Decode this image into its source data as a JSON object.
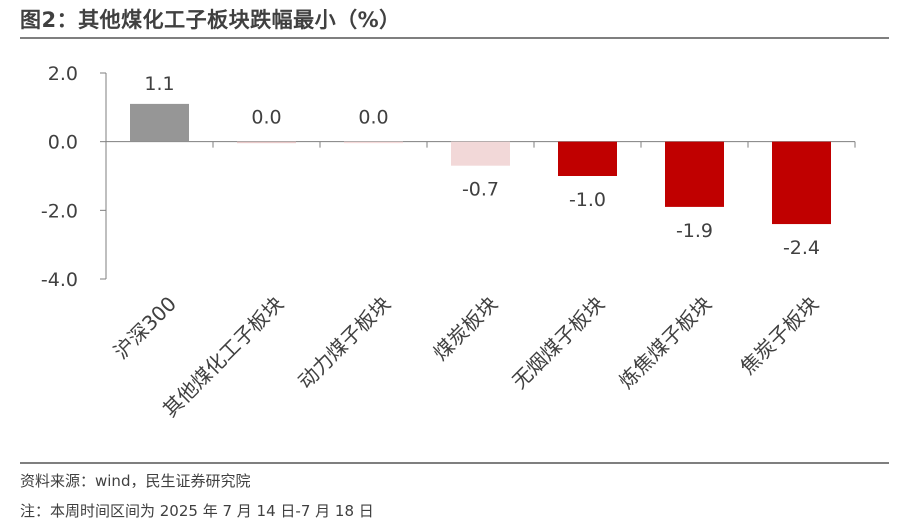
{
  "title": "图2：其他煤化工子板块跌幅最小（%）",
  "footnotes": {
    "source": "资料来源：wind，民生证券研究院",
    "note": "注：本周时间区间为 2025 年 7 月 14 日-7 月 18 日"
  },
  "chart_data": {
    "type": "bar",
    "categories": [
      "沪深300",
      "其他煤化工子板块",
      "动力煤子板块",
      "煤炭板块",
      "无烟煤子板块",
      "炼焦煤子板块",
      "焦炭子板块"
    ],
    "values": [
      1.1,
      0.0,
      0.0,
      -0.7,
      -1.0,
      -1.9,
      -2.4
    ],
    "data_labels": [
      "1.1",
      "0.0",
      "0.0",
      "-0.7",
      "-1.0",
      "-1.9",
      "-2.4"
    ],
    "bar_colors": [
      "#969696",
      "#e8c8c8",
      "#f5dada",
      "#f2d8d8",
      "#c00000",
      "#c00000",
      "#c00000"
    ],
    "yticks": [
      "2.0",
      "0.0",
      "-2.0",
      "-4.0"
    ],
    "ytick_values": [
      2,
      0,
      -2,
      -4
    ],
    "ylim": [
      -4,
      2
    ],
    "grid": false,
    "legend": "none"
  }
}
